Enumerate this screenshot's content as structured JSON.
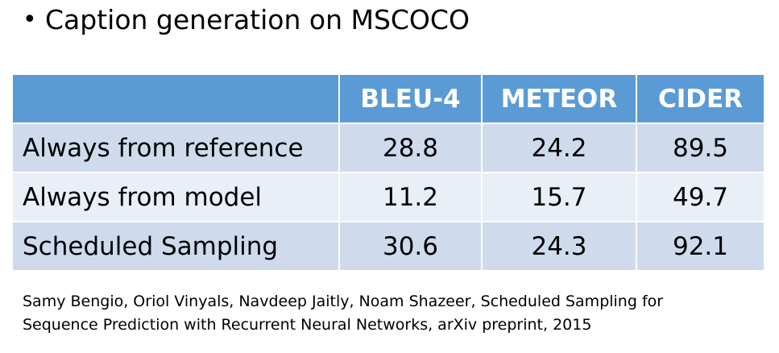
{
  "heading": {
    "bullet": "•",
    "text": "Caption generation on MSCOCO"
  },
  "table": {
    "headers": [
      "",
      "BLEU-4",
      "METEOR",
      "CIDER"
    ],
    "rows": [
      {
        "label": "Always from reference",
        "values": [
          "28.8",
          "24.2",
          "89.5"
        ]
      },
      {
        "label": "Always from model",
        "values": [
          "11.2",
          "15.7",
          "49.7"
        ]
      },
      {
        "label": "Scheduled Sampling",
        "values": [
          "30.6",
          "24.3",
          "92.1"
        ]
      }
    ]
  },
  "citation": {
    "line1": "Samy Bengio, Oriol Vinyals, Navdeep Jaitly, Noam Shazeer, Scheduled Sampling for",
    "line2": "Sequence Prediction with Recurrent Neural Networks, arXiv preprint, 2015"
  },
  "colors": {
    "header_bg": "#5b9bd5",
    "row_odd_bg": "#cfdbed",
    "row_even_bg": "#e9eff7"
  }
}
